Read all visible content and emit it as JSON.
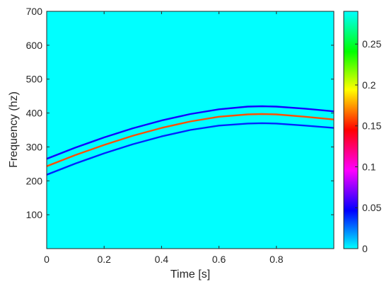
{
  "chart_data": {
    "type": "heatmap",
    "title": "",
    "xlabel": "Time [s]",
    "ylabel": "Frequency (hz)",
    "xlim": [
      0,
      1
    ],
    "ylim": [
      0,
      700
    ],
    "x_ticks": [
      0,
      0.2,
      0.4,
      0.6,
      0.8
    ],
    "x_tick_labels": [
      "0",
      "0.2",
      "0.4",
      "0.6",
      "0.8"
    ],
    "y_ticks": [
      100,
      200,
      300,
      400,
      500,
      600,
      700
    ],
    "y_tick_labels": [
      "100",
      "200",
      "300",
      "400",
      "500",
      "600",
      "700"
    ],
    "background_value": 0.0,
    "grid": false,
    "colorbar": {
      "position": "right",
      "range": [
        0,
        0.29
      ],
      "ticks": [
        0,
        0.05,
        0.1,
        0.15,
        0.2,
        0.25
      ],
      "tick_labels": [
        "0",
        "0.05",
        "0.1",
        "0.15",
        "0.2",
        "0.25"
      ],
      "colormap": "hsv"
    },
    "series": [
      {
        "time": [
          0,
          0.1,
          0.2,
          0.3,
          0.4,
          0.5,
          0.6,
          0.7,
          0.75,
          0.8,
          0.9,
          1.0
        ],
        "frequency": [
          265,
          298,
          328,
          355,
          378,
          397,
          411,
          419,
          420,
          419,
          413,
          405
        ],
        "value": 0.05
      },
      {
        "time": [
          0,
          0.1,
          0.2,
          0.3,
          0.4,
          0.5,
          0.6,
          0.7,
          0.75,
          0.8,
          0.9,
          1.0
        ],
        "frequency": [
          243,
          276,
          306,
          333,
          356,
          375,
          389,
          396,
          397,
          396,
          389,
          381
        ],
        "value": 0.16
      },
      {
        "time": [
          0,
          0.1,
          0.2,
          0.3,
          0.4,
          0.5,
          0.6,
          0.7,
          0.75,
          0.8,
          0.9,
          1.0
        ],
        "frequency": [
          218,
          251,
          281,
          308,
          331,
          350,
          363,
          369,
          370,
          369,
          363,
          356
        ],
        "value": 0.04
      }
    ]
  }
}
